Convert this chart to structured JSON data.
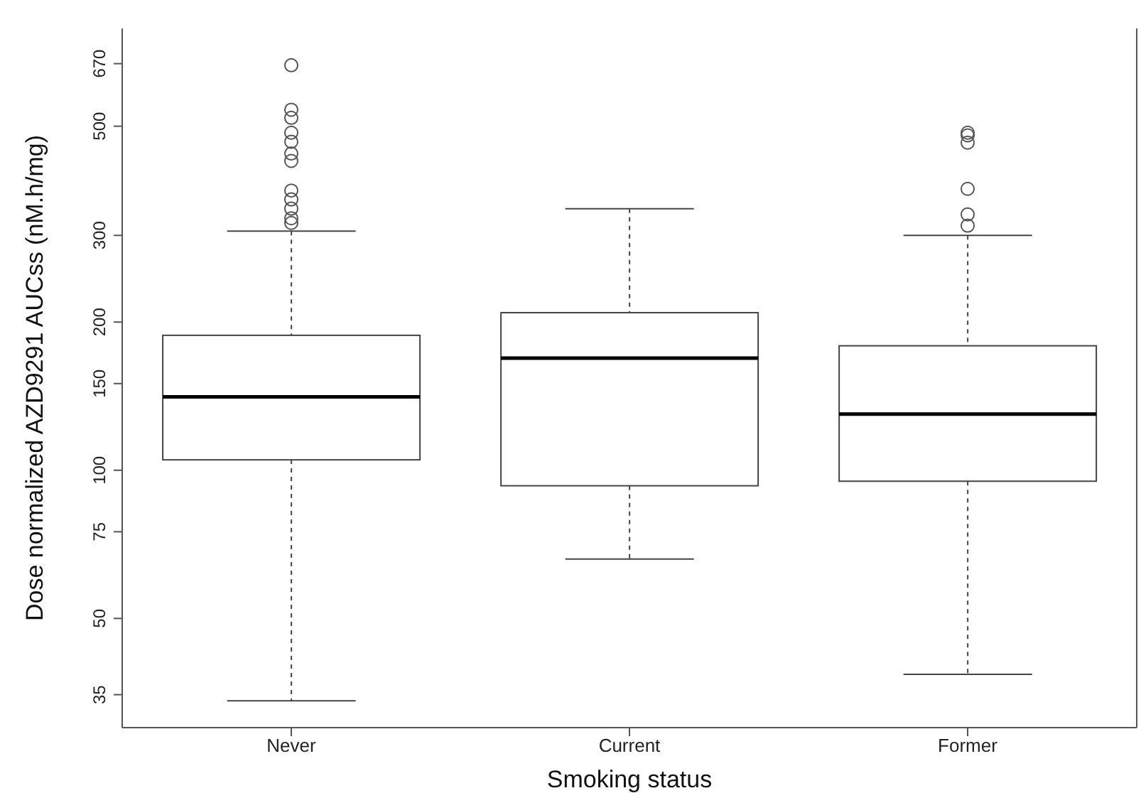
{
  "chart_data": {
    "type": "box",
    "categories": [
      "Never",
      "Current",
      "Former"
    ],
    "xlabel": "Smoking status",
    "ylabel": "Dose normalized AZD9291 AUCss (nM.h/mg)",
    "log": true,
    "ylim": [
      30,
      790
    ],
    "yticks": [
      35,
      50,
      75,
      100,
      150,
      200,
      300,
      500,
      670
    ],
    "marker": "circle",
    "boxes": [
      {
        "low": 34,
        "q1": 105,
        "median": 141,
        "q3": 188,
        "high": 306,
        "outliers": [
          665,
          540,
          520,
          485,
          465,
          440,
          425,
          370,
          355,
          340,
          325,
          318
        ]
      },
      {
        "low": 66,
        "q1": 93,
        "median": 169,
        "q3": 209,
        "high": 340
      },
      {
        "low": 38.5,
        "q1": 95,
        "median": 130,
        "q3": 179,
        "high": 300,
        "outliers": [
          485,
          479,
          463,
          373,
          331,
          314
        ]
      }
    ]
  }
}
